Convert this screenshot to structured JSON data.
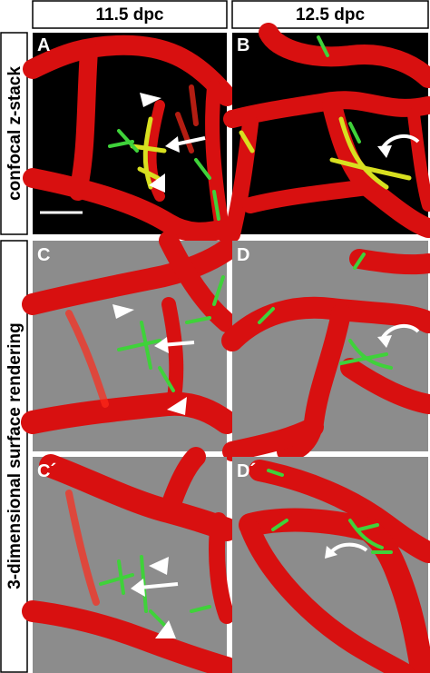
{
  "column_headers": [
    "11.5 dpc",
    "12.5 dpc"
  ],
  "row_labels": [
    "confocal z-stack",
    "3-dimensional surface rendering"
  ],
  "panels": [
    {
      "label": "A"
    },
    {
      "label": "B"
    },
    {
      "label": "C"
    },
    {
      "label": "D"
    },
    {
      "label": "C´"
    },
    {
      "label": "D´"
    }
  ]
}
